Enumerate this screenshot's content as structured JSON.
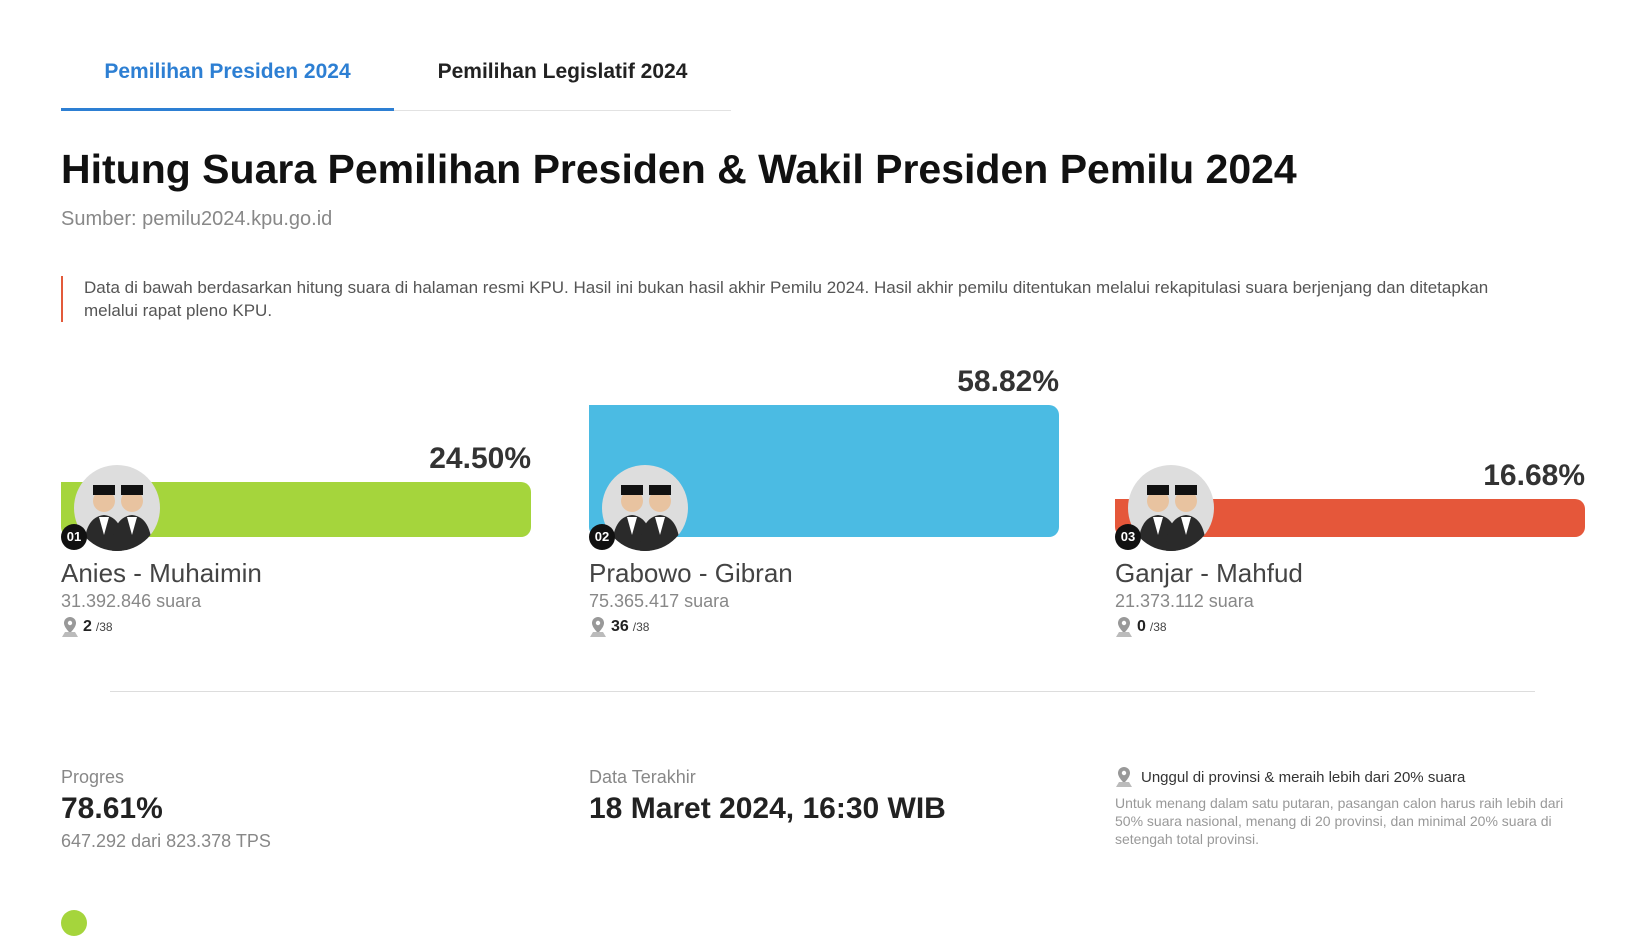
{
  "tabs": [
    {
      "label": "Pemilihan Presiden 2024",
      "active": true
    },
    {
      "label": "Pemilihan Legislatif 2024",
      "active": false
    }
  ],
  "title": "Hitung Suara Pemilihan Presiden & Wakil Presiden Pemilu 2024",
  "source": "Sumber: pemilu2024.kpu.go.id",
  "note": "Data di bawah berdasarkan hitung suara di halaman resmi KPU. Hasil ini bukan hasil akhir Pemilu 2024. Hasil akhir pemilu ditentukan melalui rekapitulasi suara berjenjang dan ditetapkan melalui rapat pleno KPU.",
  "chart_data": {
    "type": "bar",
    "categories": [
      "Anies - Muhaimin",
      "Prabowo - Gibran",
      "Ganjar - Mahfud"
    ],
    "values": [
      24.5,
      58.82,
      16.68
    ],
    "labels": [
      "24.50%",
      "58.82%",
      "16.68%"
    ],
    "numbers": [
      "01",
      "02",
      "03"
    ],
    "votes": [
      "31.392.846 suara",
      "75.365.417 suara",
      "21.373.112 suara"
    ],
    "provinces_won": [
      "2",
      "36",
      "0"
    ],
    "provinces_total": "/38",
    "colors": [
      "#a5d53c",
      "#4bbbe3",
      "#e5573a"
    ]
  },
  "stats": {
    "progress_label": "Progres",
    "progress_value": "78.61%",
    "progress_sub": "647.292 dari 823.378 TPS",
    "updated_label": "Data Terakhir",
    "updated_value": "18 Maret 2024, 16:30 WIB",
    "legend_title": "Unggul di provinsi & meraih lebih dari 20% suara",
    "legend_desc": "Untuk menang dalam satu putaran, pasangan calon harus raih lebih dari 50% suara nasional, menang di 20 provinsi, dan minimal 20% suara di setengah total provinsi."
  }
}
